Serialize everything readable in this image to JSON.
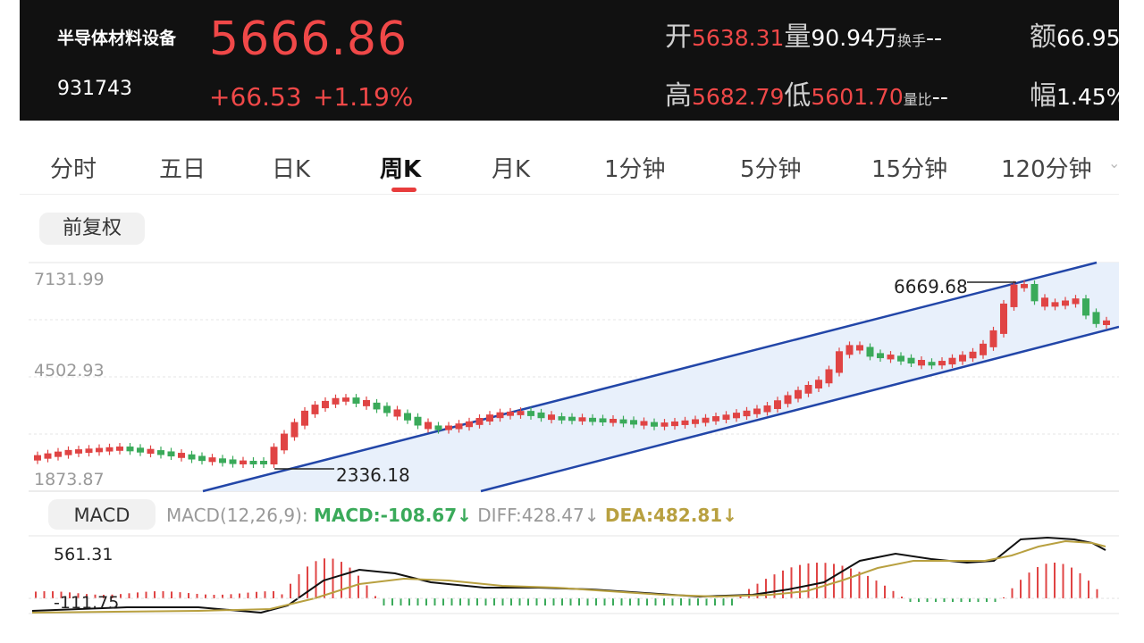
{
  "header": {
    "name": "半导体材料设备",
    "code": "931743",
    "price": "5666.86",
    "change": "+66.53",
    "change_pct": "+1.19%",
    "open_label": "开",
    "open": "5638.31",
    "volume_label": "量",
    "volume": "90.94万",
    "turnover_label": "换手",
    "turnover": "--",
    "amount_label": "额",
    "amount": "66.95",
    "high_label": "高",
    "high": "5682.79",
    "low_label": "低",
    "low": "5601.70",
    "volratio_label": "量比",
    "volratio": "--",
    "amp_label": "幅",
    "amp": "1.45%"
  },
  "tabs": [
    {
      "label": "分时"
    },
    {
      "label": "五日"
    },
    {
      "label": "日K"
    },
    {
      "label": "周K",
      "active": true
    },
    {
      "label": "月K"
    },
    {
      "label": "1分钟"
    },
    {
      "label": "5分钟"
    },
    {
      "label": "15分钟"
    },
    {
      "label": "120分钟"
    }
  ],
  "adjust_button": "前复权",
  "chart": {
    "y_top": "7131.99",
    "y_mid": "4502.93",
    "y_bottom": "1873.87",
    "max_label": "6669.68",
    "min_label": "2336.18",
    "colors": {
      "up": "#e04444",
      "down": "#3aaa5a",
      "channel": "#2246a8",
      "fill": "#e8f0fb"
    }
  },
  "macd": {
    "button": "MACD",
    "params": "MACD(12,26,9):",
    "macd": "MACD:-108.67↓",
    "diff": "DIFF:428.47↓",
    "dea": "DEA:482.81↓",
    "y_top": "561.31",
    "y_bottom": "-111.75"
  }
}
